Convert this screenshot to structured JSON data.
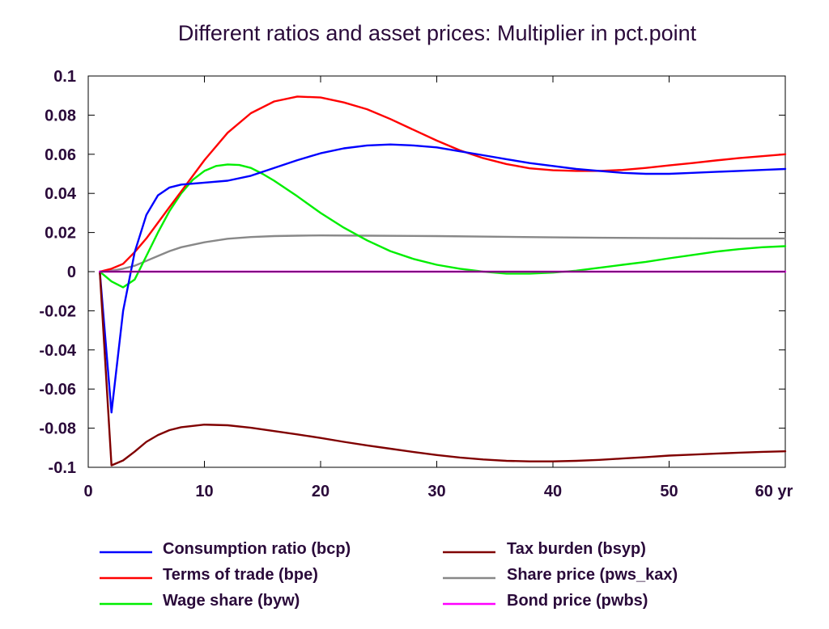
{
  "chart_data": {
    "type": "line",
    "title": "Different ratios and asset prices: Multiplier in pct.point",
    "xlabel": "",
    "ylabel": "",
    "x_unit_label": "yr",
    "xlim": [
      0,
      60
    ],
    "ylim": [
      -0.1,
      0.1
    ],
    "x_ticks": [
      0,
      10,
      20,
      30,
      40,
      50,
      60
    ],
    "x_tick_labels": [
      "0",
      "10",
      "20",
      "30",
      "40",
      "50",
      "60 yr"
    ],
    "y_ticks": [
      0.1,
      0.08,
      0.06,
      0.04,
      0.02,
      0,
      -0.02,
      -0.04,
      -0.06,
      -0.08,
      -0.1
    ],
    "y_tick_labels": [
      "0.1",
      "0.08",
      "0.06",
      "0.04",
      "0.02",
      "0",
      "-0.02",
      "-0.04",
      "-0.06",
      "-0.08",
      "-0.1"
    ],
    "grid": false,
    "legend_position": "bottom",
    "series": [
      {
        "name": "Consumption ratio (bcp)",
        "color": "#0000ff",
        "points": [
          [
            1,
            0
          ],
          [
            2,
            -0.072
          ],
          [
            3,
            -0.02
          ],
          [
            4,
            0.01
          ],
          [
            5,
            0.029
          ],
          [
            6,
            0.039
          ],
          [
            7,
            0.043
          ],
          [
            8,
            0.0445
          ],
          [
            10,
            0.0455
          ],
          [
            12,
            0.0465
          ],
          [
            14,
            0.049
          ],
          [
            16,
            0.053
          ],
          [
            18,
            0.057
          ],
          [
            20,
            0.0605
          ],
          [
            22,
            0.063
          ],
          [
            24,
            0.0645
          ],
          [
            26,
            0.065
          ],
          [
            28,
            0.0645
          ],
          [
            30,
            0.0635
          ],
          [
            32,
            0.0615
          ],
          [
            34,
            0.0595
          ],
          [
            36,
            0.0575
          ],
          [
            38,
            0.0555
          ],
          [
            40,
            0.054
          ],
          [
            42,
            0.0525
          ],
          [
            44,
            0.0515
          ],
          [
            46,
            0.0505
          ],
          [
            48,
            0.05
          ],
          [
            50,
            0.05
          ],
          [
            52,
            0.0505
          ],
          [
            54,
            0.051
          ],
          [
            56,
            0.0515
          ],
          [
            58,
            0.052
          ],
          [
            60,
            0.0525
          ]
        ]
      },
      {
        "name": "Terms of trade (bpe)",
        "color": "#ff0000",
        "points": [
          [
            1,
            0
          ],
          [
            2,
            0.0015
          ],
          [
            3,
            0.004
          ],
          [
            4,
            0.01
          ],
          [
            5,
            0.017
          ],
          [
            6,
            0.025
          ],
          [
            7,
            0.033
          ],
          [
            8,
            0.041
          ],
          [
            10,
            0.057
          ],
          [
            12,
            0.071
          ],
          [
            14,
            0.081
          ],
          [
            16,
            0.087
          ],
          [
            18,
            0.0895
          ],
          [
            20,
            0.089
          ],
          [
            22,
            0.0865
          ],
          [
            24,
            0.083
          ],
          [
            26,
            0.078
          ],
          [
            28,
            0.0725
          ],
          [
            30,
            0.067
          ],
          [
            32,
            0.062
          ],
          [
            34,
            0.058
          ],
          [
            36,
            0.055
          ],
          [
            38,
            0.0528
          ],
          [
            40,
            0.0518
          ],
          [
            42,
            0.0515
          ],
          [
            44,
            0.0515
          ],
          [
            46,
            0.052
          ],
          [
            48,
            0.053
          ],
          [
            50,
            0.0543
          ],
          [
            52,
            0.0555
          ],
          [
            54,
            0.0568
          ],
          [
            56,
            0.058
          ],
          [
            58,
            0.059
          ],
          [
            60,
            0.06
          ]
        ]
      },
      {
        "name": "Wage share (byw)",
        "color": "#00ee00",
        "points": [
          [
            1,
            0
          ],
          [
            2,
            -0.005
          ],
          [
            3,
            -0.008
          ],
          [
            4,
            -0.004
          ],
          [
            5,
            0.008
          ],
          [
            6,
            0.02
          ],
          [
            7,
            0.031
          ],
          [
            8,
            0.04
          ],
          [
            9,
            0.047
          ],
          [
            10,
            0.0515
          ],
          [
            11,
            0.054
          ],
          [
            12,
            0.0548
          ],
          [
            13,
            0.0545
          ],
          [
            14,
            0.053
          ],
          [
            15,
            0.05
          ],
          [
            16,
            0.0465
          ],
          [
            18,
            0.0385
          ],
          [
            20,
            0.03
          ],
          [
            22,
            0.0225
          ],
          [
            24,
            0.016
          ],
          [
            26,
            0.0105
          ],
          [
            28,
            0.0065
          ],
          [
            30,
            0.0035
          ],
          [
            32,
            0.0015
          ],
          [
            34,
            0.0
          ],
          [
            36,
            -0.001
          ],
          [
            38,
            -0.001
          ],
          [
            40,
            -0.0005
          ],
          [
            42,
            0.0005
          ],
          [
            44,
            0.002
          ],
          [
            46,
            0.0035
          ],
          [
            48,
            0.005
          ],
          [
            50,
            0.0068
          ],
          [
            52,
            0.0085
          ],
          [
            54,
            0.0102
          ],
          [
            56,
            0.0115
          ],
          [
            58,
            0.0125
          ],
          [
            60,
            0.013
          ]
        ]
      },
      {
        "name": "Tax burden (bsyp)",
        "color": "#800000",
        "points": [
          [
            1,
            0
          ],
          [
            2,
            -0.099
          ],
          [
            3,
            -0.0965
          ],
          [
            4,
            -0.092
          ],
          [
            5,
            -0.087
          ],
          [
            6,
            -0.0835
          ],
          [
            7,
            -0.081
          ],
          [
            8,
            -0.0795
          ],
          [
            10,
            -0.0782
          ],
          [
            12,
            -0.0785
          ],
          [
            14,
            -0.0798
          ],
          [
            16,
            -0.0815
          ],
          [
            18,
            -0.0832
          ],
          [
            20,
            -0.085
          ],
          [
            22,
            -0.087
          ],
          [
            24,
            -0.0888
          ],
          [
            26,
            -0.0905
          ],
          [
            28,
            -0.0922
          ],
          [
            30,
            -0.0937
          ],
          [
            32,
            -0.095
          ],
          [
            34,
            -0.096
          ],
          [
            36,
            -0.0967
          ],
          [
            38,
            -0.097
          ],
          [
            40,
            -0.097
          ],
          [
            42,
            -0.0967
          ],
          [
            44,
            -0.0962
          ],
          [
            46,
            -0.0955
          ],
          [
            48,
            -0.0948
          ],
          [
            50,
            -0.094
          ],
          [
            52,
            -0.0935
          ],
          [
            54,
            -0.093
          ],
          [
            56,
            -0.0925
          ],
          [
            58,
            -0.0921
          ],
          [
            60,
            -0.0918
          ]
        ]
      },
      {
        "name": "Share price (pws_kax)",
        "color": "#888888",
        "points": [
          [
            1,
            0
          ],
          [
            2,
            0.0005
          ],
          [
            3,
            0.0015
          ],
          [
            4,
            0.003
          ],
          [
            5,
            0.0055
          ],
          [
            6,
            0.008
          ],
          [
            7,
            0.0105
          ],
          [
            8,
            0.0125
          ],
          [
            10,
            0.015
          ],
          [
            12,
            0.0168
          ],
          [
            14,
            0.0177
          ],
          [
            16,
            0.0182
          ],
          [
            18,
            0.0184
          ],
          [
            20,
            0.0185
          ],
          [
            24,
            0.0184
          ],
          [
            30,
            0.0182
          ],
          [
            36,
            0.0178
          ],
          [
            40,
            0.0175
          ],
          [
            44,
            0.0173
          ],
          [
            50,
            0.0171
          ],
          [
            56,
            0.017
          ],
          [
            60,
            0.017
          ]
        ]
      },
      {
        "name": "Bond price (pwbs)",
        "color": "#ff00ff",
        "points": [
          [
            1,
            0
          ],
          [
            60,
            0
          ]
        ]
      }
    ],
    "overlay_line": {
      "color": "#800080",
      "value": 0
    }
  }
}
